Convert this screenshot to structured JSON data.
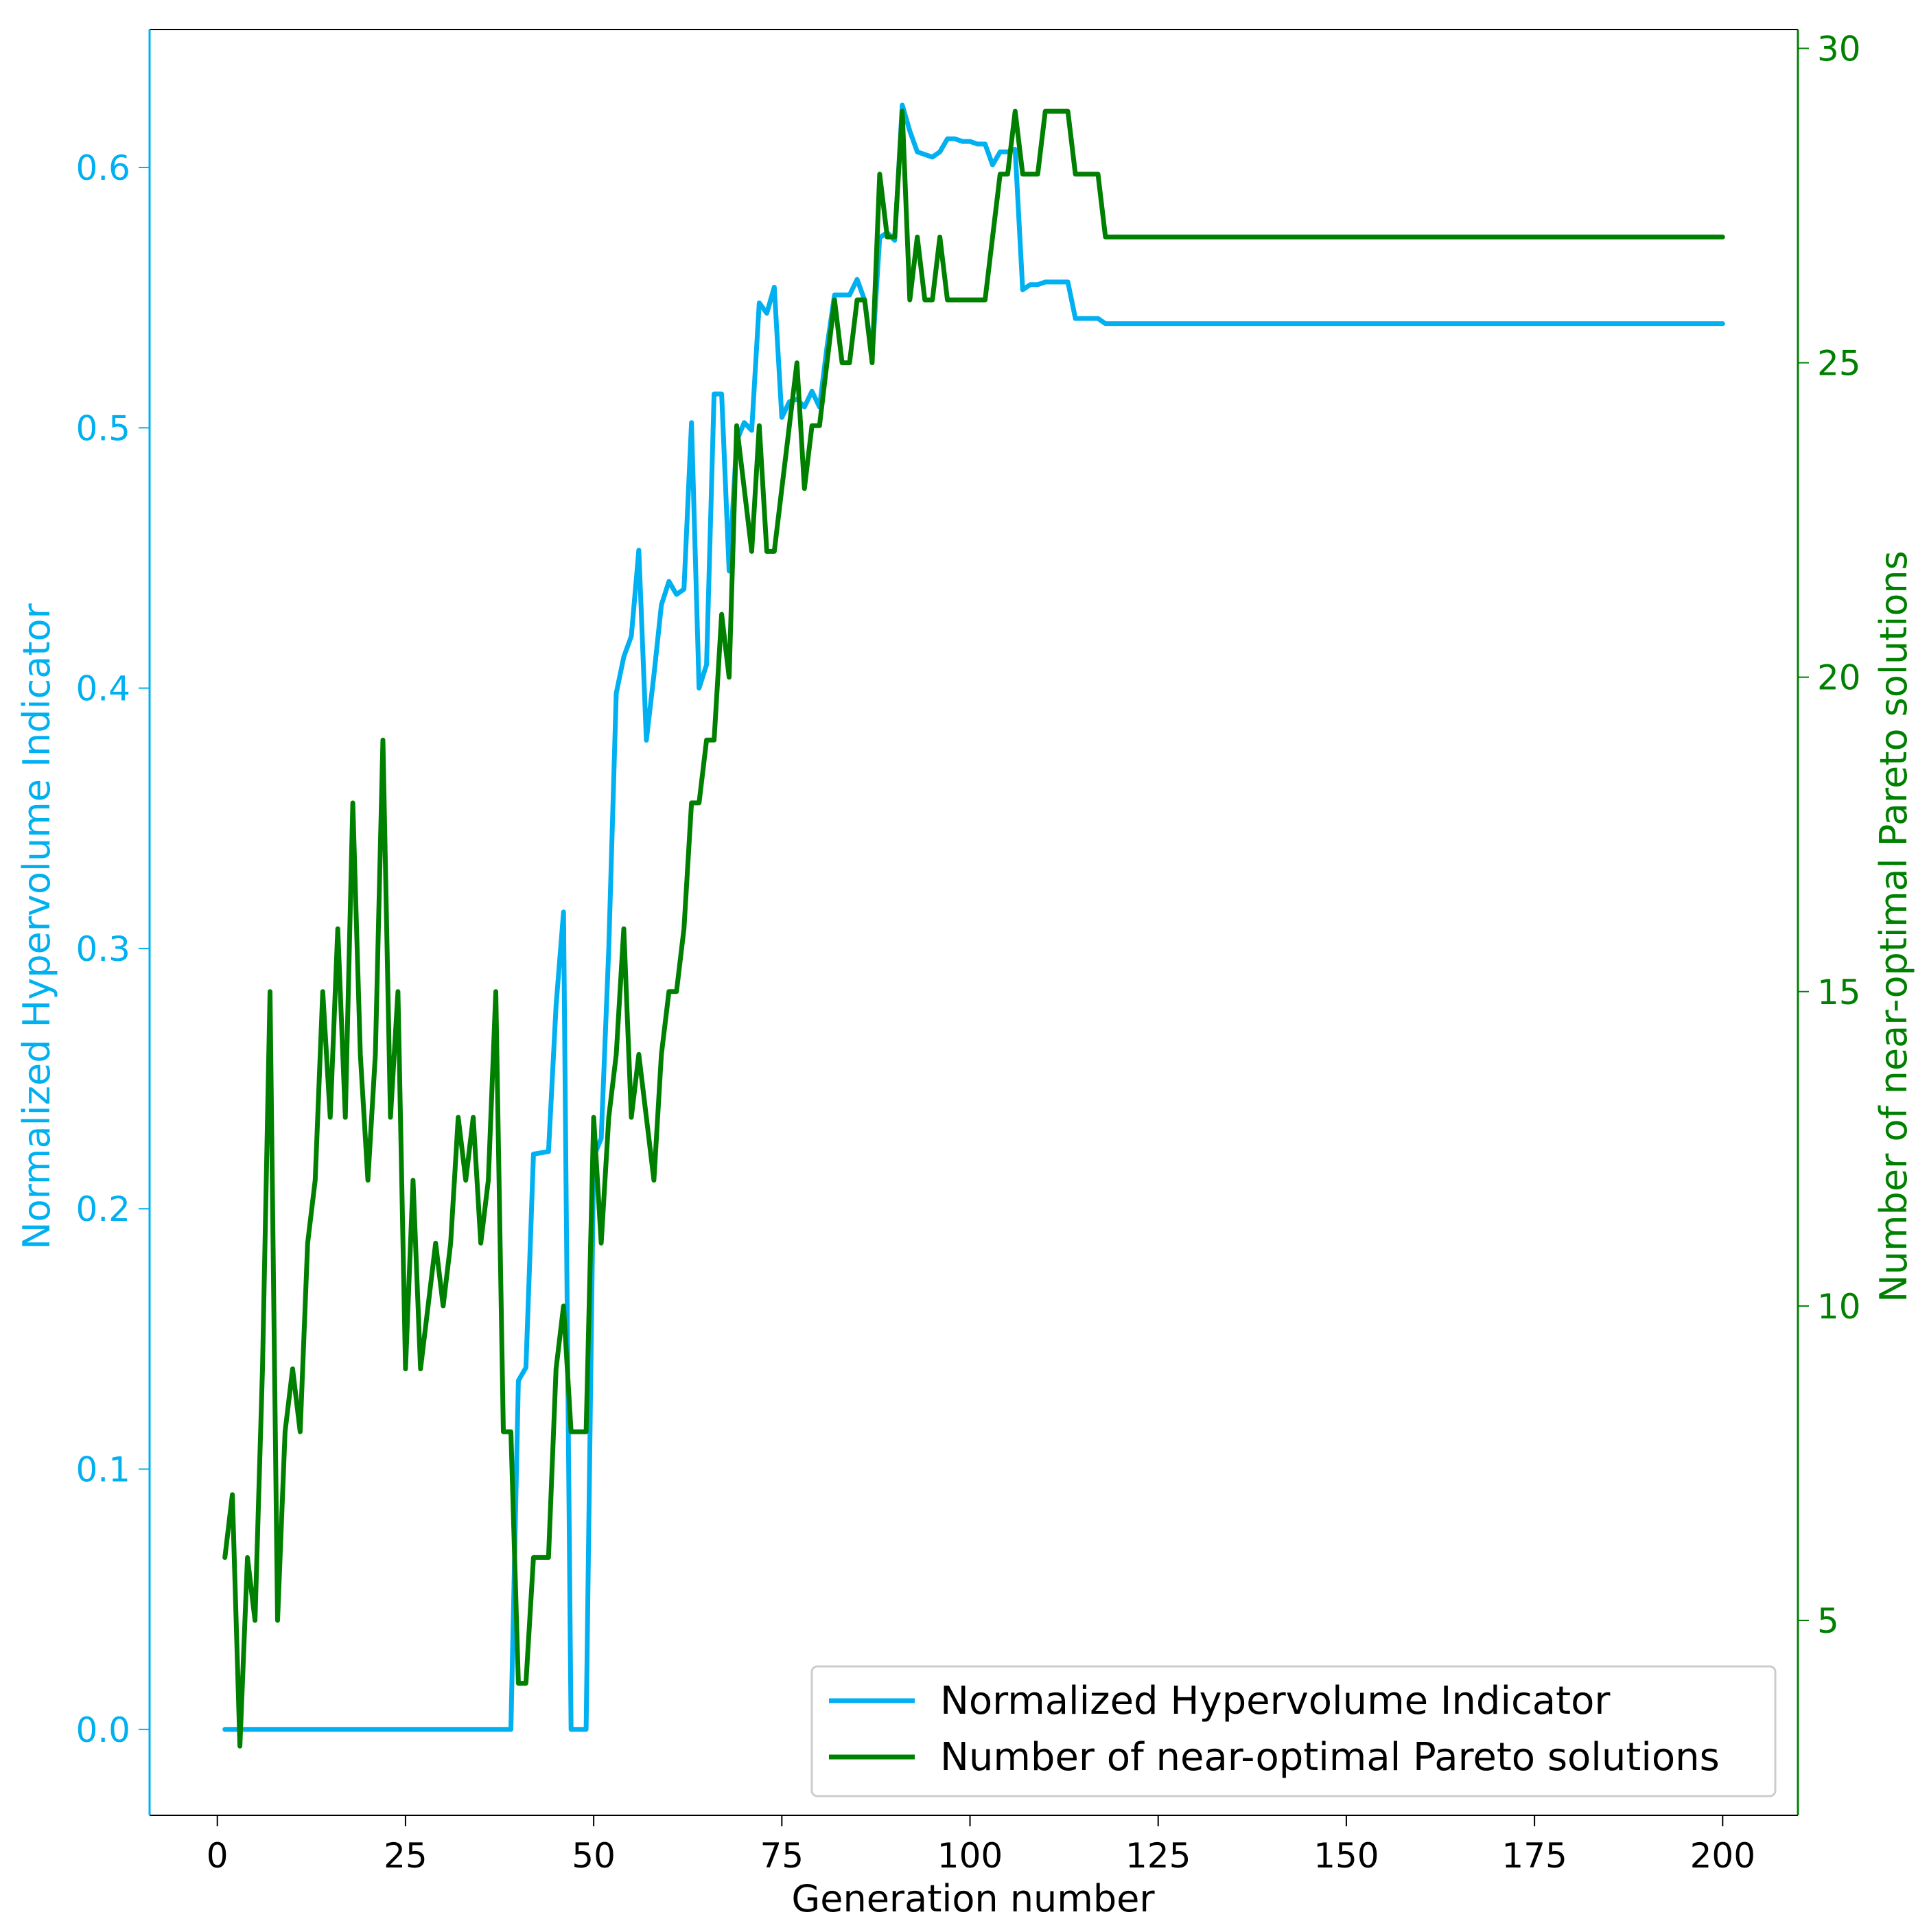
{
  "chart_data": {
    "type": "line",
    "xlabel": "Generation number",
    "ylabel_left": "Normalized Hypervolume Indicator",
    "ylabel_right": "Number of near-optimal Pareto solutions",
    "xlim": [
      -9,
      210
    ],
    "ylim_left": [
      -0.033,
      0.653
    ],
    "ylim_right": [
      1.9,
      30.3
    ],
    "x_ticks": [
      0,
      25,
      50,
      75,
      100,
      125,
      150,
      175,
      200
    ],
    "y_left_ticks": [
      "0.0",
      "0.1",
      "0.2",
      "0.3",
      "0.4",
      "0.5",
      "0.6"
    ],
    "y_right_ticks": [
      "5",
      "10",
      "15",
      "20",
      "25",
      "30"
    ],
    "legend_position": "lower-right",
    "grid": false,
    "colors": {
      "hypervolume": "#00b0f0",
      "pareto": "#008000",
      "axis": "#000000"
    },
    "series": [
      {
        "name": "Normalized Hypervolume Indicator",
        "axis": "left",
        "points": [
          [
            1,
            0.0
          ],
          [
            2,
            0.0
          ],
          [
            38,
            0.0
          ],
          [
            39,
            0.0
          ],
          [
            40,
            0.134
          ],
          [
            41,
            0.139
          ],
          [
            42,
            0.221
          ],
          [
            44,
            0.222
          ],
          [
            45,
            0.278
          ],
          [
            46,
            0.314
          ],
          [
            47,
            0.0
          ],
          [
            49,
            0.0
          ],
          [
            50,
            0.22
          ],
          [
            51,
            0.227
          ],
          [
            52,
            0.3
          ],
          [
            53,
            0.398
          ],
          [
            54,
            0.412
          ],
          [
            55,
            0.42
          ],
          [
            56,
            0.453
          ],
          [
            57,
            0.38
          ],
          [
            58,
            0.405
          ],
          [
            59,
            0.432
          ],
          [
            60,
            0.441
          ],
          [
            61,
            0.436
          ],
          [
            62,
            0.438
          ],
          [
            63,
            0.502
          ],
          [
            64,
            0.4
          ],
          [
            65,
            0.409
          ],
          [
            66,
            0.513
          ],
          [
            67,
            0.513
          ],
          [
            68,
            0.445
          ],
          [
            69,
            0.495
          ],
          [
            70,
            0.502
          ],
          [
            71,
            0.499
          ],
          [
            72,
            0.548
          ],
          [
            73,
            0.544
          ],
          [
            74,
            0.554
          ],
          [
            75,
            0.504
          ],
          [
            76,
            0.51
          ],
          [
            77,
            0.511
          ],
          [
            78,
            0.508
          ],
          [
            79,
            0.514
          ],
          [
            80,
            0.508
          ],
          [
            81,
            0.531
          ],
          [
            82,
            0.551
          ],
          [
            83,
            0.551
          ],
          [
            84,
            0.551
          ],
          [
            85,
            0.557
          ],
          [
            86,
            0.549
          ],
          [
            87,
            0.527
          ],
          [
            88,
            0.573
          ],
          [
            89,
            0.575
          ],
          [
            90,
            0.572
          ],
          [
            91,
            0.624
          ],
          [
            92,
            0.614
          ],
          [
            93,
            0.606
          ],
          [
            94,
            0.605
          ],
          [
            95,
            0.604
          ],
          [
            96,
            0.606
          ],
          [
            97,
            0.611
          ],
          [
            98,
            0.611
          ],
          [
            99,
            0.61
          ],
          [
            100,
            0.61
          ],
          [
            101,
            0.609
          ],
          [
            102,
            0.609
          ],
          [
            103,
            0.601
          ],
          [
            104,
            0.606
          ],
          [
            105,
            0.606
          ],
          [
            106,
            0.607
          ],
          [
            107,
            0.553
          ],
          [
            108,
            0.555
          ],
          [
            109,
            0.555
          ],
          [
            110,
            0.556
          ],
          [
            111,
            0.556
          ],
          [
            112,
            0.556
          ],
          [
            113,
            0.556
          ],
          [
            114,
            0.542
          ],
          [
            115,
            0.542
          ],
          [
            116,
            0.542
          ],
          [
            117,
            0.542
          ],
          [
            118,
            0.54
          ],
          [
            150,
            0.54
          ],
          [
            200,
            0.54
          ]
        ]
      },
      {
        "name": "Number of near-optimal Pareto solutions",
        "axis": "right",
        "points": [
          [
            1,
            6
          ],
          [
            2,
            7
          ],
          [
            3,
            3
          ],
          [
            4,
            6
          ],
          [
            5,
            5
          ],
          [
            6,
            9
          ],
          [
            7,
            15
          ],
          [
            8,
            5
          ],
          [
            9,
            8
          ],
          [
            10,
            9
          ],
          [
            11,
            8
          ],
          [
            12,
            11
          ],
          [
            13,
            12
          ],
          [
            14,
            15
          ],
          [
            15,
            13
          ],
          [
            16,
            16
          ],
          [
            17,
            13
          ],
          [
            18,
            18
          ],
          [
            19,
            14
          ],
          [
            20,
            12
          ],
          [
            21,
            14
          ],
          [
            22,
            19
          ],
          [
            23,
            13
          ],
          [
            24,
            15
          ],
          [
            25,
            9
          ],
          [
            26,
            12
          ],
          [
            27,
            9
          ],
          [
            28,
            10
          ],
          [
            29,
            11
          ],
          [
            30,
            10
          ],
          [
            31,
            11
          ],
          [
            32,
            13
          ],
          [
            33,
            12
          ],
          [
            34,
            13
          ],
          [
            35,
            11
          ],
          [
            36,
            12
          ],
          [
            37,
            15
          ],
          [
            38,
            8
          ],
          [
            39,
            8
          ],
          [
            40,
            4
          ],
          [
            41,
            4
          ],
          [
            42,
            6
          ],
          [
            43,
            6
          ],
          [
            44,
            6
          ],
          [
            45,
            9
          ],
          [
            46,
            10
          ],
          [
            47,
            8
          ],
          [
            48,
            8
          ],
          [
            49,
            8
          ],
          [
            50,
            13
          ],
          [
            51,
            11
          ],
          [
            52,
            13
          ],
          [
            53,
            14
          ],
          [
            54,
            16
          ],
          [
            55,
            13
          ],
          [
            56,
            14
          ],
          [
            57,
            13
          ],
          [
            58,
            12
          ],
          [
            59,
            14
          ],
          [
            60,
            15
          ],
          [
            61,
            15
          ],
          [
            62,
            16
          ],
          [
            63,
            18
          ],
          [
            64,
            18
          ],
          [
            65,
            19
          ],
          [
            66,
            19
          ],
          [
            67,
            21
          ],
          [
            68,
            20
          ],
          [
            69,
            24
          ],
          [
            70,
            23
          ],
          [
            71,
            22
          ],
          [
            72,
            24
          ],
          [
            73,
            22
          ],
          [
            74,
            22
          ],
          [
            75,
            23
          ],
          [
            76,
            24
          ],
          [
            77,
            25
          ],
          [
            78,
            23
          ],
          [
            79,
            24
          ],
          [
            80,
            24
          ],
          [
            81,
            25
          ],
          [
            82,
            26
          ],
          [
            83,
            25
          ],
          [
            84,
            25
          ],
          [
            85,
            26
          ],
          [
            86,
            26
          ],
          [
            87,
            25
          ],
          [
            88,
            28
          ],
          [
            89,
            27
          ],
          [
            90,
            27
          ],
          [
            91,
            29
          ],
          [
            92,
            26
          ],
          [
            93,
            27
          ],
          [
            94,
            26
          ],
          [
            95,
            26
          ],
          [
            96,
            27
          ],
          [
            97,
            26
          ],
          [
            98,
            26
          ],
          [
            99,
            26
          ],
          [
            100,
            26
          ],
          [
            101,
            26
          ],
          [
            102,
            26
          ],
          [
            103,
            27
          ],
          [
            104,
            28
          ],
          [
            105,
            28
          ],
          [
            106,
            29
          ],
          [
            107,
            28
          ],
          [
            108,
            28
          ],
          [
            109,
            28
          ],
          [
            110,
            29
          ],
          [
            111,
            29
          ],
          [
            112,
            29
          ],
          [
            113,
            29
          ],
          [
            114,
            28
          ],
          [
            115,
            28
          ],
          [
            116,
            28
          ],
          [
            117,
            28
          ],
          [
            118,
            27
          ],
          [
            150,
            27
          ],
          [
            200,
            27
          ]
        ]
      }
    ]
  }
}
